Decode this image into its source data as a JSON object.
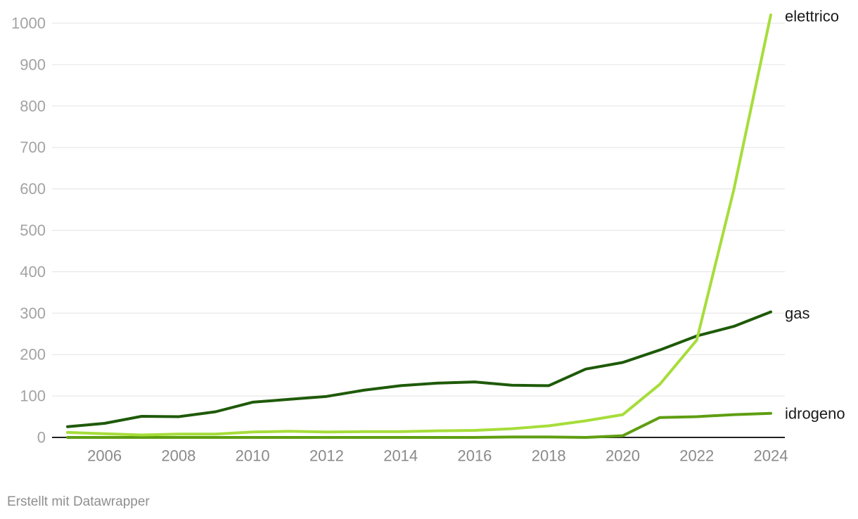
{
  "chart_data": {
    "type": "line",
    "x": [
      2005,
      2006,
      2007,
      2008,
      2009,
      2010,
      2011,
      2012,
      2013,
      2014,
      2015,
      2016,
      2017,
      2018,
      2019,
      2020,
      2021,
      2022,
      2023,
      2024
    ],
    "series": [
      {
        "name": "elettrico",
        "color": "#a6dd3a",
        "values": [
          12,
          9,
          6,
          8,
          8,
          13,
          15,
          13,
          14,
          14,
          16,
          17,
          21,
          28,
          40,
          55,
          128,
          235,
          598,
          1020
        ]
      },
      {
        "name": "gas",
        "color": "#1e5a08",
        "values": [
          26,
          34,
          51,
          50,
          62,
          85,
          92,
          99,
          114,
          125,
          131,
          134,
          126,
          125,
          165,
          181,
          211,
          245,
          268,
          303
        ]
      },
      {
        "name": "idrogeno",
        "color": "#5f9e11",
        "values": [
          0,
          0,
          0,
          0,
          0,
          0,
          0,
          0,
          0,
          0,
          0,
          0,
          1,
          1,
          0,
          4,
          48,
          50,
          55,
          58
        ]
      }
    ],
    "ylim": [
      0,
      1000
    ],
    "yticks": [
      "0",
      "100",
      "200",
      "300",
      "400",
      "500",
      "600",
      "700",
      "800",
      "900",
      "1000"
    ],
    "xticks": [
      "2006",
      "2008",
      "2010",
      "2012",
      "2014",
      "2016",
      "2018",
      "2020",
      "2022",
      "2024"
    ],
    "grid": "horizontal",
    "legend": "direct labels at line ends"
  },
  "credit": "Erstellt mit Datawrapper"
}
